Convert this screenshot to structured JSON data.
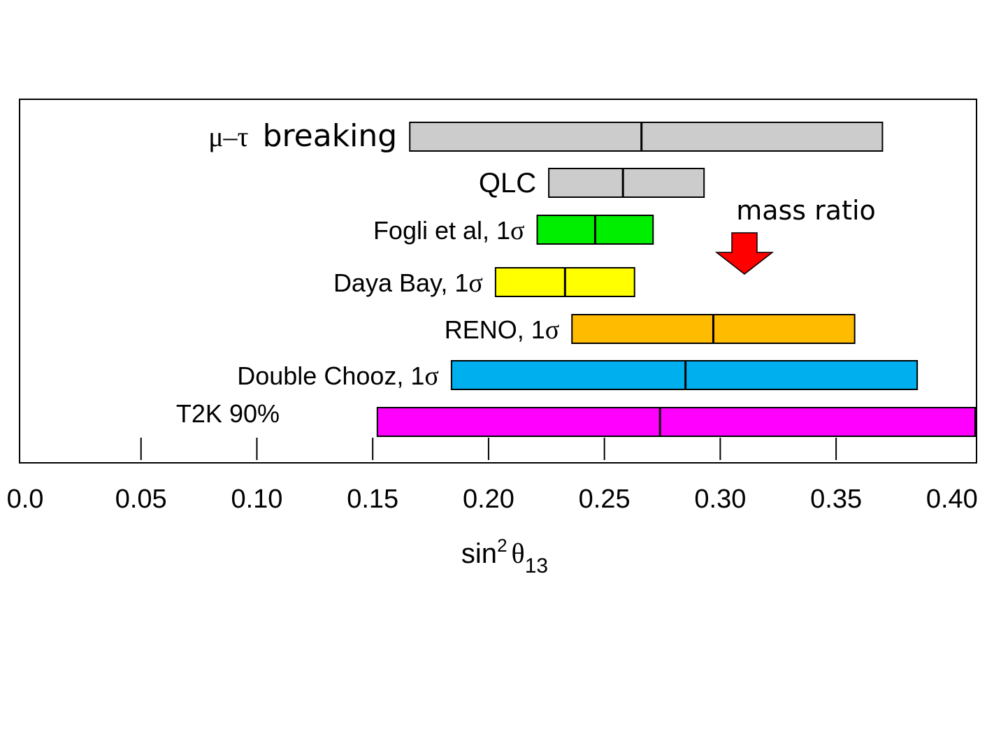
{
  "chart_data": {
    "type": "range-bar",
    "xlabel": {
      "base": "sin",
      "sup": "2",
      "symbol": "θ",
      "sub": "13"
    },
    "xlim": [
      0.0,
      0.41
    ],
    "xticks": [
      0.0,
      0.05,
      0.1,
      0.15,
      0.2,
      0.25,
      0.3,
      0.35,
      0.4
    ],
    "xtick_labels": [
      "0.0",
      "0.05",
      "0.10",
      "0.15",
      "0.20",
      "0.25",
      "0.30",
      "0.35",
      "0.40"
    ],
    "grid": false,
    "series": [
      {
        "name": "μ–τ breaking",
        "label_prefix": "μ–τ",
        "label_suffix": "breaking",
        "low": 0.166,
        "center": 0.266,
        "high": 0.37,
        "color": "#cccccc"
      },
      {
        "name": "QLC",
        "low": 0.226,
        "center": 0.258,
        "high": 0.293,
        "color": "#cccccc"
      },
      {
        "name": "Fogli et al, 1σ",
        "label_prefix": "Fogli et al, 1",
        "label_suffix": "σ",
        "low": 0.221,
        "center": 0.246,
        "high": 0.271,
        "color": "#00ee00"
      },
      {
        "name": "Daya Bay, 1σ",
        "label_prefix": "Daya Bay, 1",
        "label_suffix": "σ",
        "low": 0.203,
        "center": 0.233,
        "high": 0.263,
        "color": "#ffff00"
      },
      {
        "name": "RENO, 1σ",
        "label_prefix": "RENO,  1",
        "label_suffix": "σ",
        "low": 0.236,
        "center": 0.297,
        "high": 0.358,
        "color": "#ffbb00"
      },
      {
        "name": "Double Chooz, 1σ",
        "label_prefix": "Double Chooz, 1",
        "label_suffix": "σ",
        "low": 0.184,
        "center": 0.285,
        "high": 0.385,
        "color": "#00b0ee"
      },
      {
        "name": "T2K 90%",
        "label_prefix": "T2K  90%",
        "low": 0.152,
        "center": 0.274,
        "high": 0.41,
        "color": "#ff00ff"
      }
    ],
    "annotations": [
      {
        "text": "mass ratio",
        "x": 0.308,
        "arrow": "down",
        "color": "#ff0000"
      }
    ]
  }
}
